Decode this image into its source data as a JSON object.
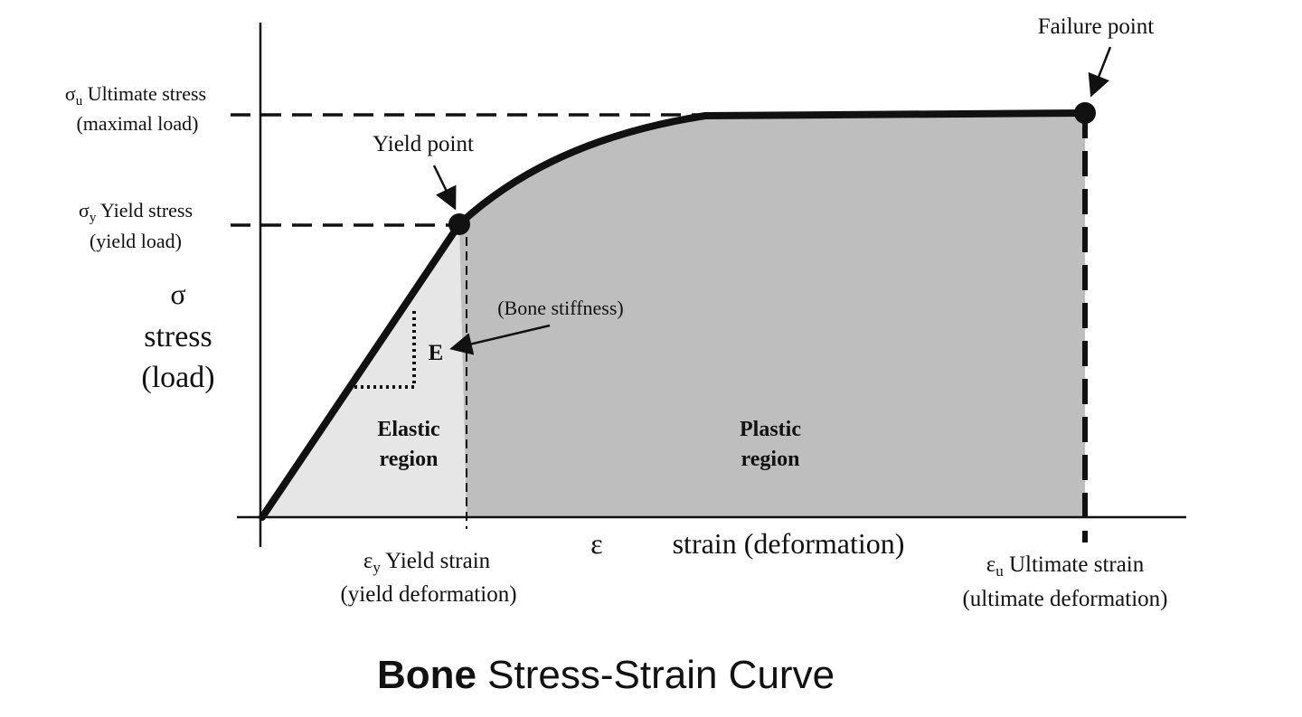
{
  "title_bold": "Bone",
  "title_rest": " Stress-Strain Curve",
  "labels": {
    "failure_point": "Failure point",
    "yield_point": "Yield point",
    "ultimate_stress_sym": "σ",
    "ultimate_stress_sub": "u",
    "ultimate_stress": " Ultimate stress",
    "ultimate_stress_note": "(maximal load)",
    "yield_stress_sym": "σ",
    "yield_stress_sub": "y",
    "yield_stress": " Yield stress",
    "yield_stress_note": "(yield load)",
    "y_axis_symbol": "σ",
    "y_axis_word": "stress",
    "y_axis_note": "(load)",
    "x_axis_symbol": "ε",
    "x_axis_label": "strain (deformation)",
    "yield_strain_sym": "ε",
    "yield_strain_sub": "y",
    "yield_strain": " Yield strain",
    "yield_strain_note": "(yield deformation)",
    "ultimate_strain_sym": "ε",
    "ultimate_strain_sub": "u",
    "ultimate_strain": " Ultimate strain",
    "ultimate_strain_note": "(ultimate deformation)",
    "bone_stiffness": "(Bone stiffness)",
    "modulus": "E",
    "elastic_line1": "Elastic",
    "elastic_line2": "region",
    "plastic_line1": "Plastic",
    "plastic_line2": "region"
  },
  "colors": {
    "elastic_fill": "#e6e6e6",
    "plastic_fill": "#bebebe",
    "curve": "#111111"
  }
}
